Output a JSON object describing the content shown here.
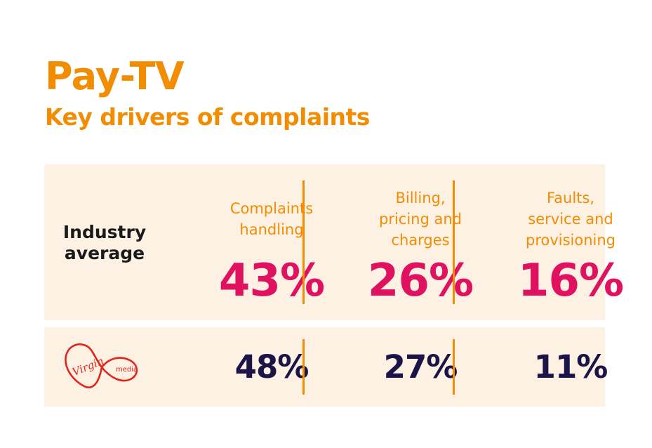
{
  "title": "Pay-TV",
  "subtitle": "Key drivers of complaints",
  "colors": {
    "accent": "#F28C00",
    "industry_value": "#E0115F",
    "provider_value": "#1B1446",
    "panel": "#FDF1E4",
    "logo": "#E1251B"
  },
  "chart_data": {
    "type": "table",
    "title": "Pay-TV",
    "subtitle": "Key drivers of complaints",
    "columns": [
      [
        "Complaints",
        "handling"
      ],
      [
        "Billing,",
        "pricing and",
        "charges"
      ],
      [
        "Faults,",
        "service and",
        "provisioning"
      ]
    ],
    "rows": [
      {
        "label": [
          "Industry",
          "average"
        ],
        "values": [
          "43%",
          "26%",
          "16%"
        ]
      },
      {
        "logo": {
          "icon": "virgin-media-logo",
          "text_main": "Virgin",
          "text_sub": "media"
        },
        "values": [
          "48%",
          "27%",
          "11%"
        ]
      }
    ]
  }
}
